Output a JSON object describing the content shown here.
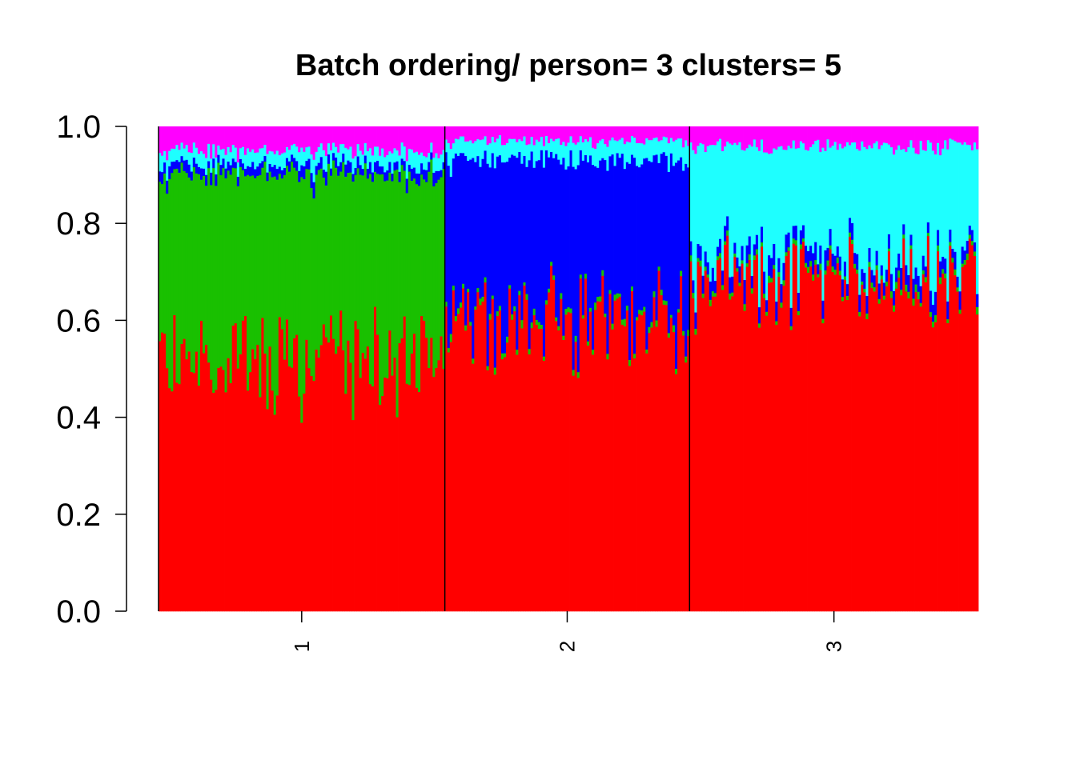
{
  "chart_data": {
    "type": "stacked-bar",
    "title": "Batch ordering/ person= 3 clusters= 5",
    "xlabel": "",
    "ylabel": "",
    "ylim": [
      0,
      1
    ],
    "y_ticks": [
      "0.0",
      "0.2",
      "0.4",
      "0.6",
      "0.8",
      "1.0"
    ],
    "groups": [
      "1",
      "2",
      "3"
    ],
    "bars_per_group": [
      117,
      100,
      118
    ],
    "cluster_colors": [
      "#ff0000",
      "#19c000",
      "#0000ff",
      "#1effff",
      "#ff00ff"
    ],
    "group_means": [
      {
        "group": "1",
        "red": 0.52,
        "green": 0.38,
        "blue": 0.02,
        "cyan": 0.03,
        "magenta": 0.05
      },
      {
        "group": "2",
        "red": 0.6,
        "green": 0.01,
        "blue": 0.32,
        "cyan": 0.04,
        "magenta": 0.03
      },
      {
        "group": "3",
        "red": 0.68,
        "green": 0.01,
        "blue": 0.03,
        "cyan": 0.24,
        "magenta": 0.04
      }
    ]
  }
}
